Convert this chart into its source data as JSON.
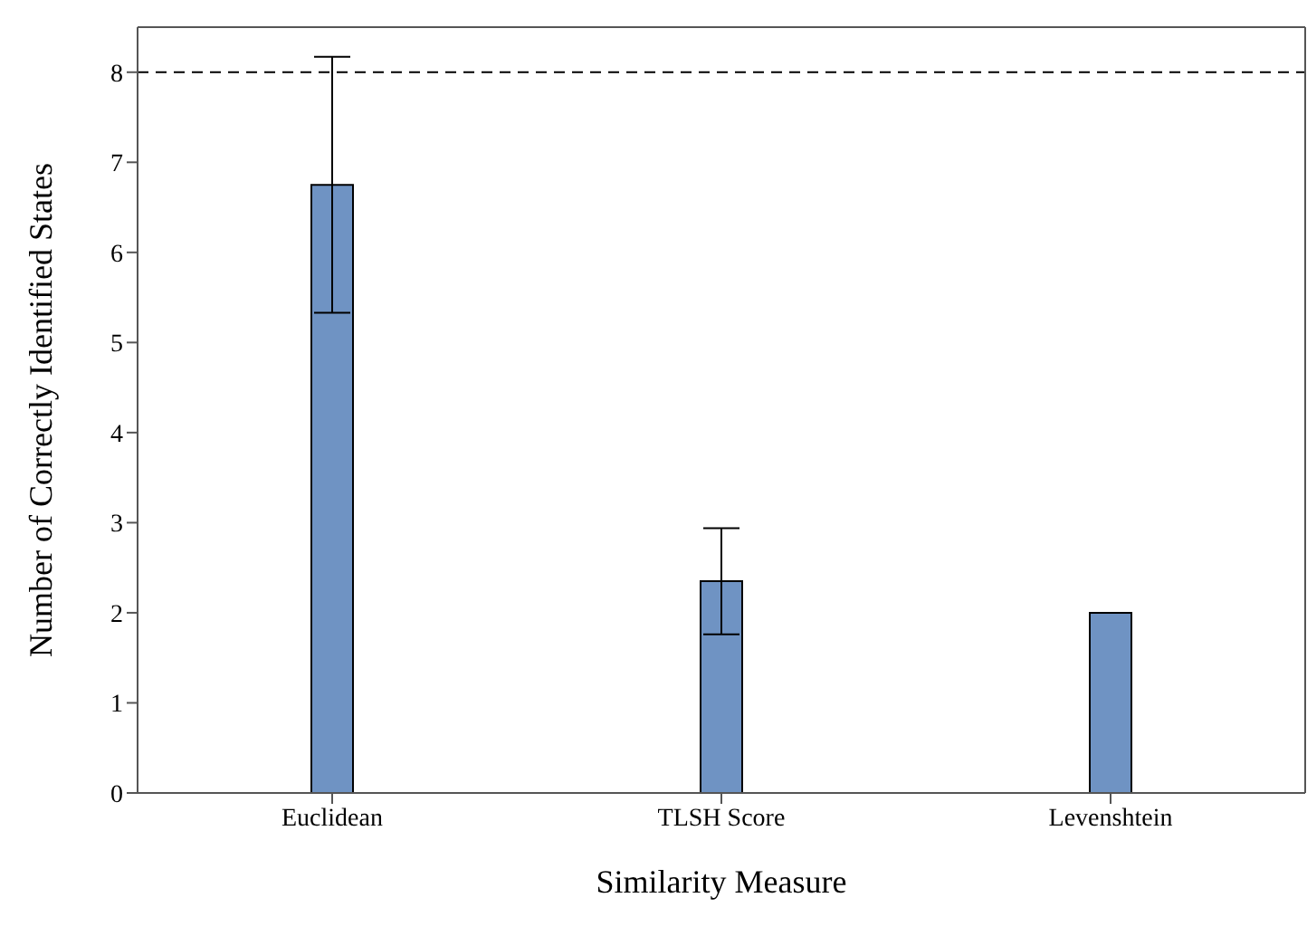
{
  "chart_data": {
    "type": "bar",
    "xlabel": "Similarity Measure",
    "ylabel": "Number of Correctly Identified States",
    "categories": [
      "Euclidean",
      "TLSH Score",
      "Levenshtein"
    ],
    "values": [
      6.75,
      2.35,
      2.0
    ],
    "errors": [
      1.42,
      0.59,
      0
    ],
    "color": "#6f93c3",
    "ylim": [
      0,
      8.5
    ],
    "yticks": [
      0,
      1,
      2,
      3,
      4,
      5,
      6,
      7,
      8
    ],
    "ref_lines": [
      {
        "axis": "y",
        "value": 8,
        "line_style": "dashed",
        "color": "#000000"
      }
    ],
    "grid": false,
    "legend": false
  }
}
